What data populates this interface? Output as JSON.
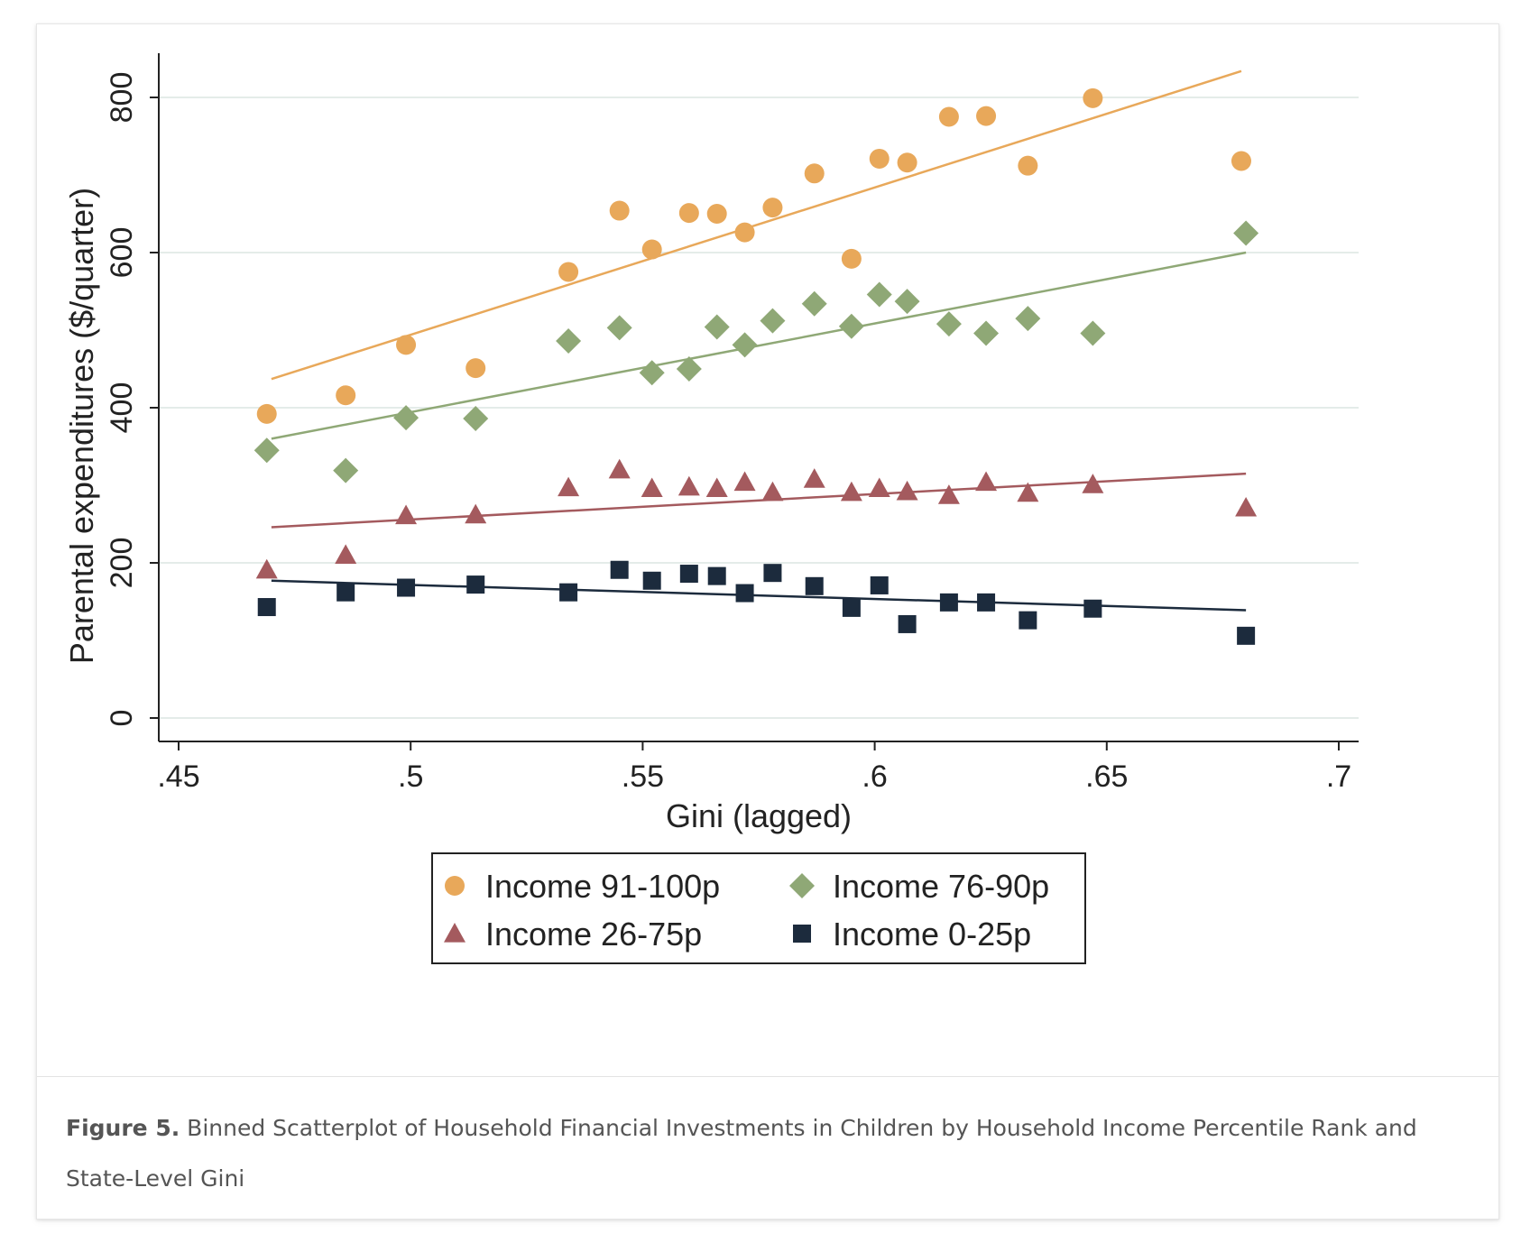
{
  "caption": {
    "label": "Figure 5.",
    "text": " Binned Scatterplot of Household Financial Investments in Children by Household Income Percentile Rank and State-Level Gini"
  },
  "chart_data": {
    "type": "scatter",
    "xlabel": "Gini (lagged)",
    "ylabel": "Parental expenditures ($/quarter)",
    "xlim": [
      0.45,
      0.7
    ],
    "ylim": [
      0,
      800
    ],
    "xticks": [
      0.45,
      0.5,
      0.55,
      0.6,
      0.65,
      0.7
    ],
    "xtick_labels": [
      ".45",
      ".5",
      ".55",
      ".6",
      ".65",
      ".7"
    ],
    "yticks": [
      0,
      200,
      400,
      600,
      800
    ],
    "ytick_labels": [
      "0",
      "200",
      "400",
      "600",
      "800"
    ],
    "grid": true,
    "legend_position": "bottom",
    "series": [
      {
        "name": "Income 91-100p",
        "marker": "circle",
        "color": "#E8A85A",
        "points": [
          [
            0.469,
            392
          ],
          [
            0.486,
            416
          ],
          [
            0.499,
            481
          ],
          [
            0.514,
            451
          ],
          [
            0.534,
            575
          ],
          [
            0.545,
            654
          ],
          [
            0.552,
            604
          ],
          [
            0.56,
            651
          ],
          [
            0.566,
            650
          ],
          [
            0.572,
            626
          ],
          [
            0.578,
            658
          ],
          [
            0.587,
            702
          ],
          [
            0.595,
            592
          ],
          [
            0.601,
            721
          ],
          [
            0.607,
            716
          ],
          [
            0.616,
            775
          ],
          [
            0.624,
            776
          ],
          [
            0.633,
            712
          ],
          [
            0.647,
            799
          ],
          [
            0.679,
            718
          ]
        ],
        "fit": [
          [
            0.47,
            437
          ],
          [
            0.679,
            834
          ]
        ]
      },
      {
        "name": "Income 76-90p",
        "marker": "diamond",
        "color": "#8FA876",
        "points": [
          [
            0.469,
            345
          ],
          [
            0.486,
            319
          ],
          [
            0.499,
            387
          ],
          [
            0.514,
            386
          ],
          [
            0.534,
            486
          ],
          [
            0.545,
            503
          ],
          [
            0.552,
            445
          ],
          [
            0.56,
            450
          ],
          [
            0.566,
            504
          ],
          [
            0.572,
            481
          ],
          [
            0.578,
            512
          ],
          [
            0.587,
            534
          ],
          [
            0.595,
            505
          ],
          [
            0.601,
            546
          ],
          [
            0.607,
            537
          ],
          [
            0.616,
            508
          ],
          [
            0.624,
            496
          ],
          [
            0.633,
            515
          ],
          [
            0.647,
            496
          ],
          [
            0.68,
            625
          ]
        ],
        "fit": [
          [
            0.47,
            360
          ],
          [
            0.68,
            600
          ]
        ]
      },
      {
        "name": "Income 26-75p",
        "marker": "triangle",
        "color": "#A45A5E",
        "points": [
          [
            0.469,
            191
          ],
          [
            0.486,
            210
          ],
          [
            0.499,
            261
          ],
          [
            0.514,
            262
          ],
          [
            0.534,
            297
          ],
          [
            0.545,
            320
          ],
          [
            0.552,
            296
          ],
          [
            0.56,
            298
          ],
          [
            0.566,
            296
          ],
          [
            0.572,
            304
          ],
          [
            0.578,
            291
          ],
          [
            0.587,
            308
          ],
          [
            0.595,
            291
          ],
          [
            0.601,
            296
          ],
          [
            0.607,
            292
          ],
          [
            0.616,
            287
          ],
          [
            0.624,
            304
          ],
          [
            0.633,
            290
          ],
          [
            0.647,
            301
          ],
          [
            0.68,
            271
          ]
        ],
        "fit": [
          [
            0.47,
            246
          ],
          [
            0.68,
            315
          ]
        ]
      },
      {
        "name": "Income 0-25p",
        "marker": "square",
        "color": "#1C2B3D",
        "points": [
          [
            0.469,
            143
          ],
          [
            0.486,
            162
          ],
          [
            0.499,
            168
          ],
          [
            0.514,
            172
          ],
          [
            0.534,
            162
          ],
          [
            0.545,
            191
          ],
          [
            0.552,
            177
          ],
          [
            0.56,
            186
          ],
          [
            0.566,
            183
          ],
          [
            0.572,
            161
          ],
          [
            0.578,
            187
          ],
          [
            0.587,
            170
          ],
          [
            0.595,
            142
          ],
          [
            0.601,
            171
          ],
          [
            0.607,
            121
          ],
          [
            0.616,
            149
          ],
          [
            0.624,
            149
          ],
          [
            0.633,
            126
          ],
          [
            0.647,
            141
          ],
          [
            0.68,
            106
          ]
        ],
        "fit": [
          [
            0.47,
            177
          ],
          [
            0.68,
            139
          ]
        ]
      }
    ]
  }
}
